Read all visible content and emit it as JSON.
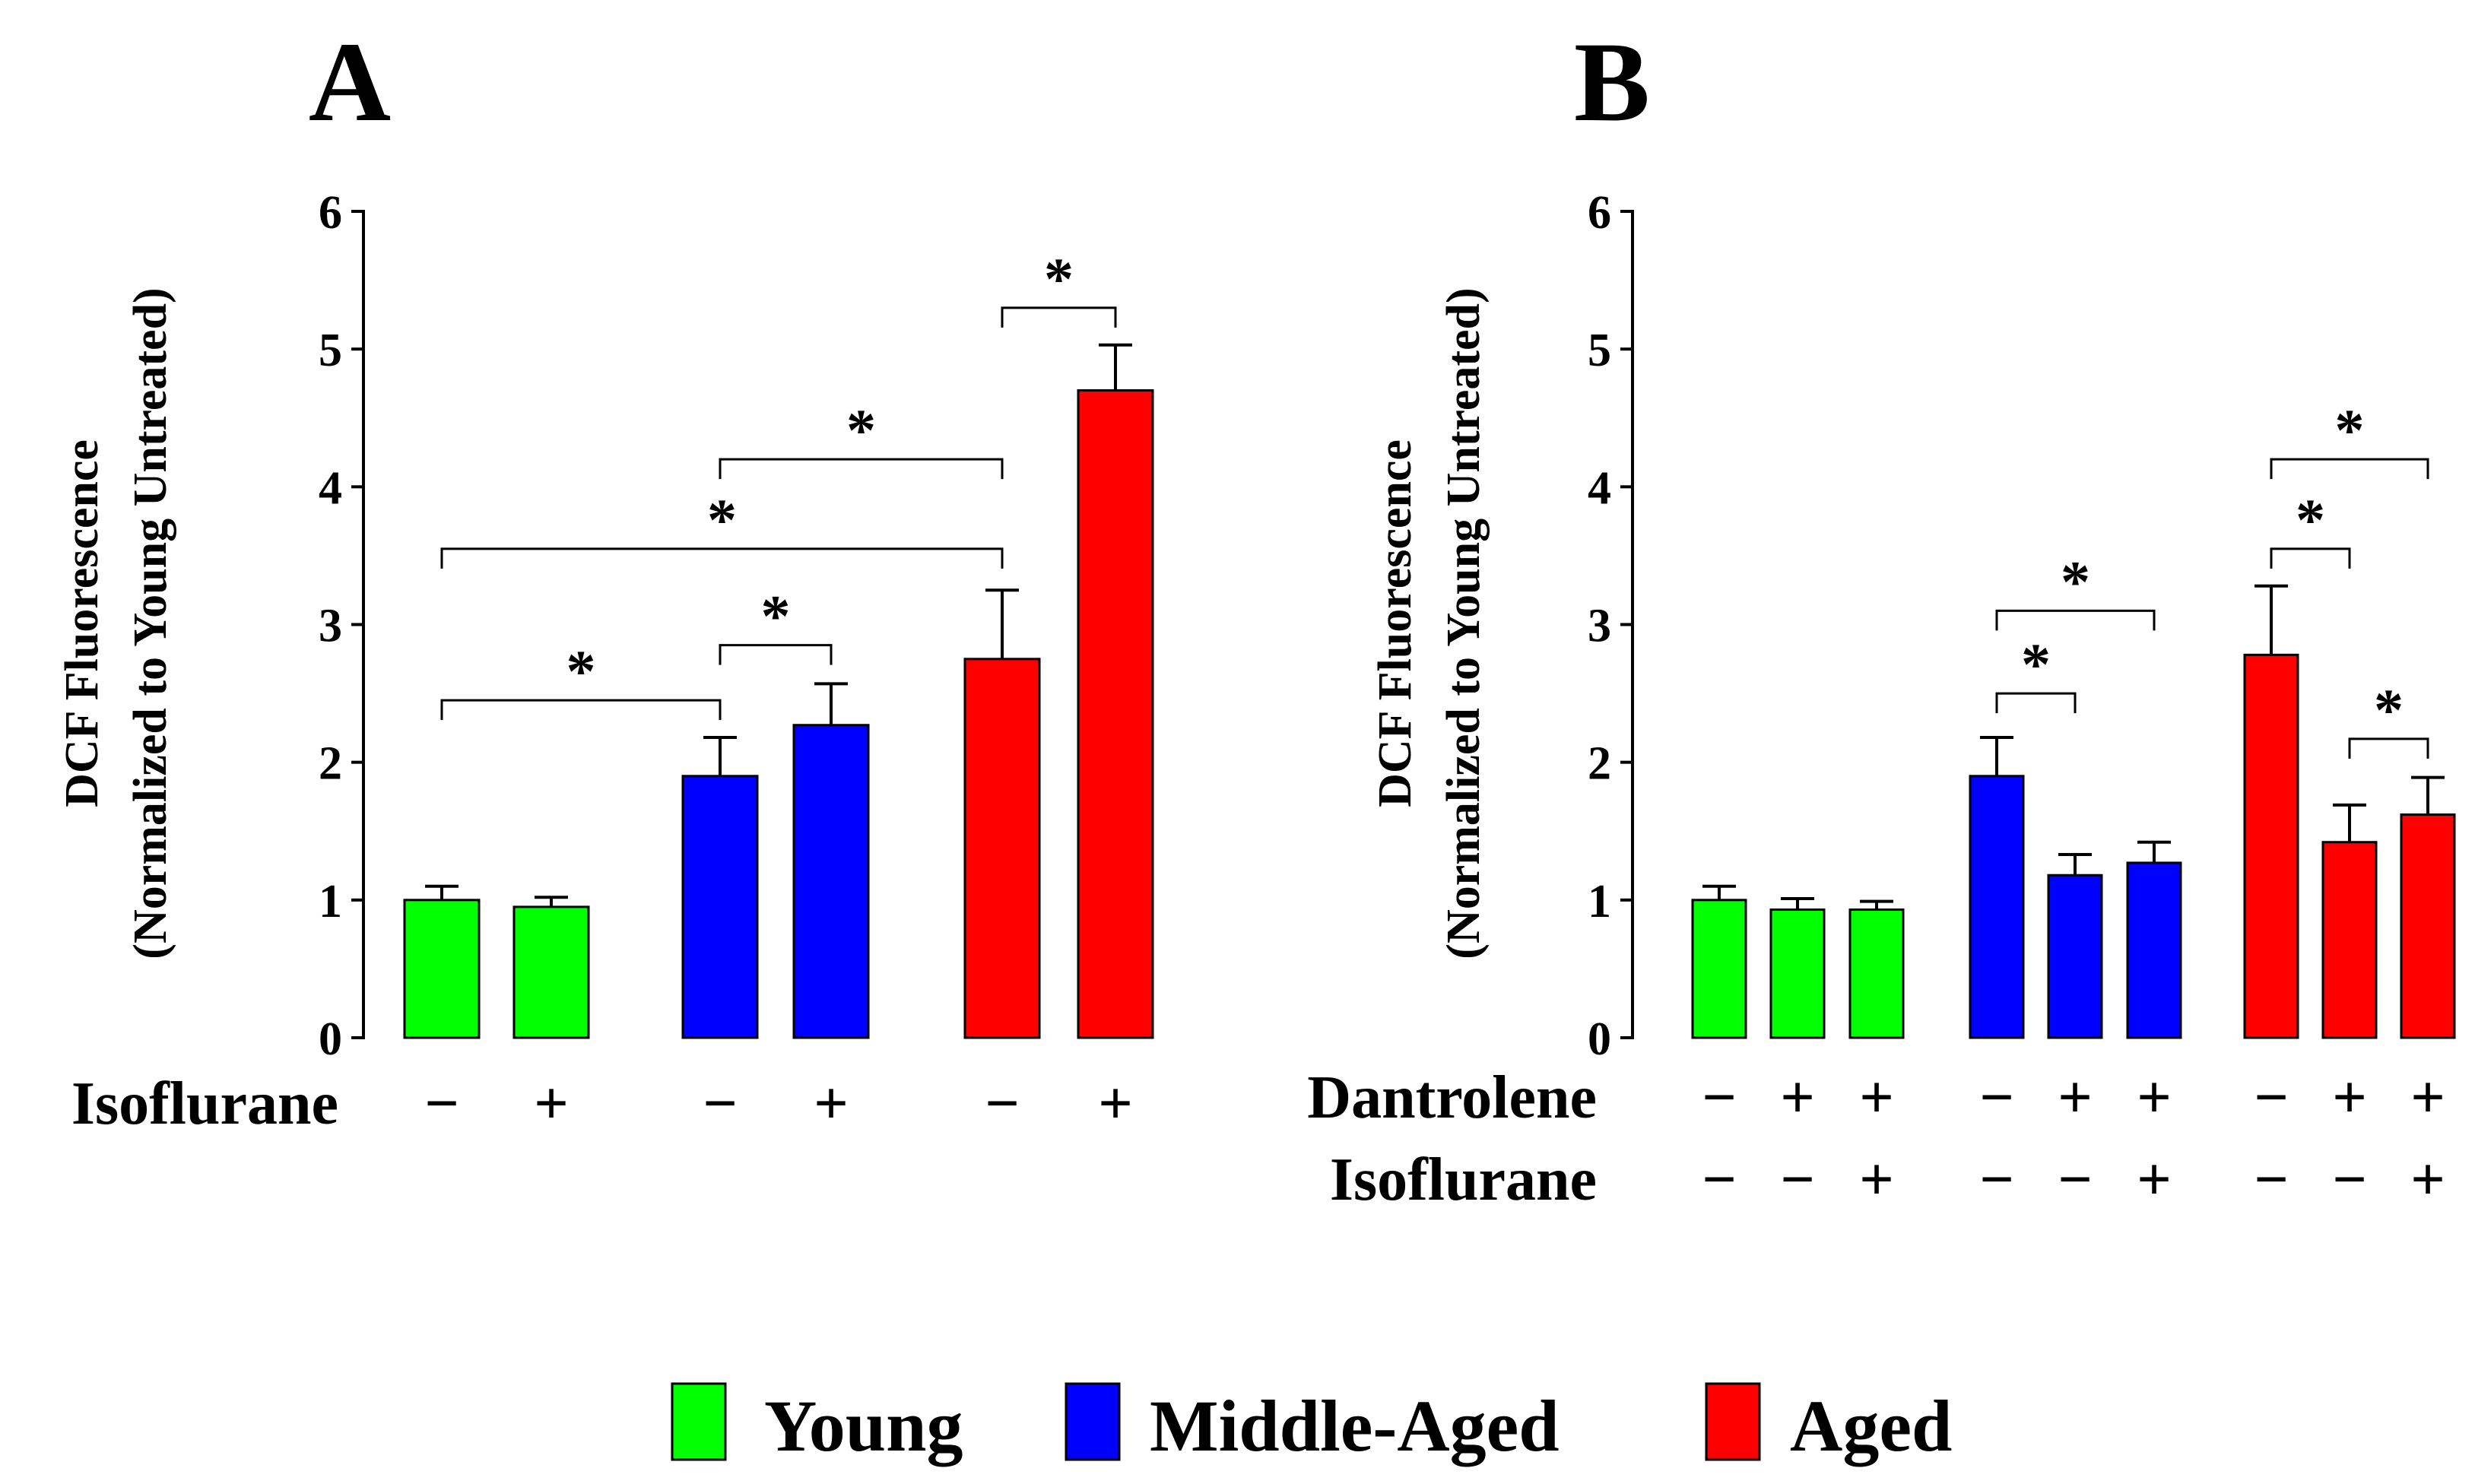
{
  "chart_data": [
    {
      "type": "bar",
      "panel_label": "A",
      "ylabel_line1": "DCF Fluorescence",
      "ylabel_line2": "(Normalized to Young Untreated)",
      "ylim": [
        0,
        6
      ],
      "yticks": [
        "0",
        "1",
        "2",
        "3",
        "4",
        "5",
        "6"
      ],
      "bars": [
        {
          "group": "Young",
          "value": 1.0,
          "error": 0.1
        },
        {
          "group": "Young",
          "value": 0.95,
          "error": 0.07
        },
        {
          "group": "Middle-Aged",
          "value": 1.9,
          "error": 0.28
        },
        {
          "group": "Middle-Aged",
          "value": 2.27,
          "error": 0.3
        },
        {
          "group": "Aged",
          "value": 2.75,
          "error": 0.5
        },
        {
          "group": "Aged",
          "value": 4.7,
          "error": 0.33
        }
      ],
      "condition_rows": [
        {
          "label": "Isoflurane",
          "signs": [
            "−",
            "+",
            "−",
            "+",
            "−",
            "+"
          ]
        }
      ],
      "significance": [
        {
          "from": 0,
          "to": 2,
          "y": 2.45,
          "label": "*"
        },
        {
          "from": 2,
          "to": 3,
          "y": 2.85,
          "label": "*"
        },
        {
          "from": 0,
          "to": 4,
          "y": 3.55,
          "label": "*"
        },
        {
          "from": 2,
          "to": 4,
          "y": 4.2,
          "label": "*"
        },
        {
          "from": 4,
          "to": 5,
          "y": 5.3,
          "label": "*"
        }
      ]
    },
    {
      "type": "bar",
      "panel_label": "B",
      "ylabel_line1": "DCF Fluorescence",
      "ylabel_line2": "(Normalized to Young Untreated)",
      "ylim": [
        0,
        6
      ],
      "yticks": [
        "0",
        "1",
        "2",
        "3",
        "4",
        "5",
        "6"
      ],
      "bars": [
        {
          "group": "Young",
          "value": 1.0,
          "error": 0.1
        },
        {
          "group": "Young",
          "value": 0.93,
          "error": 0.08
        },
        {
          "group": "Young",
          "value": 0.93,
          "error": 0.06
        },
        {
          "group": "Middle-Aged",
          "value": 1.9,
          "error": 0.28
        },
        {
          "group": "Middle-Aged",
          "value": 1.18,
          "error": 0.15
        },
        {
          "group": "Middle-Aged",
          "value": 1.27,
          "error": 0.15
        },
        {
          "group": "Aged",
          "value": 2.78,
          "error": 0.5
        },
        {
          "group": "Aged",
          "value": 1.42,
          "error": 0.27
        },
        {
          "group": "Aged",
          "value": 1.62,
          "error": 0.27
        }
      ],
      "condition_rows": [
        {
          "label": "Dantrolene",
          "signs": [
            "−",
            "+",
            "+",
            "−",
            "+",
            "+",
            "−",
            "+",
            "+"
          ]
        },
        {
          "label": "Isoflurane",
          "signs": [
            "−",
            "−",
            "+",
            "−",
            "−",
            "+",
            "−",
            "−",
            "+"
          ]
        }
      ],
      "significance": [
        {
          "from": 3,
          "to": 4,
          "y": 2.5,
          "label": "*"
        },
        {
          "from": 3,
          "to": 5,
          "y": 3.1,
          "label": "*"
        },
        {
          "from": 6,
          "to": 7,
          "y": 3.55,
          "label": "*"
        },
        {
          "from": 7,
          "to": 8,
          "y": 2.17,
          "label": "*"
        },
        {
          "from": 6,
          "to": 8,
          "y": 4.2,
          "label": "*"
        }
      ]
    }
  ],
  "legend": [
    {
      "label": "Young",
      "color": "#00ff00"
    },
    {
      "label": "Middle-Aged",
      "color": "#0000ff"
    },
    {
      "label": "Aged",
      "color": "#ff0000"
    }
  ],
  "colors": {
    "Young": "#00ff00",
    "Middle-Aged": "#0000ff",
    "Aged": "#ff0000"
  }
}
